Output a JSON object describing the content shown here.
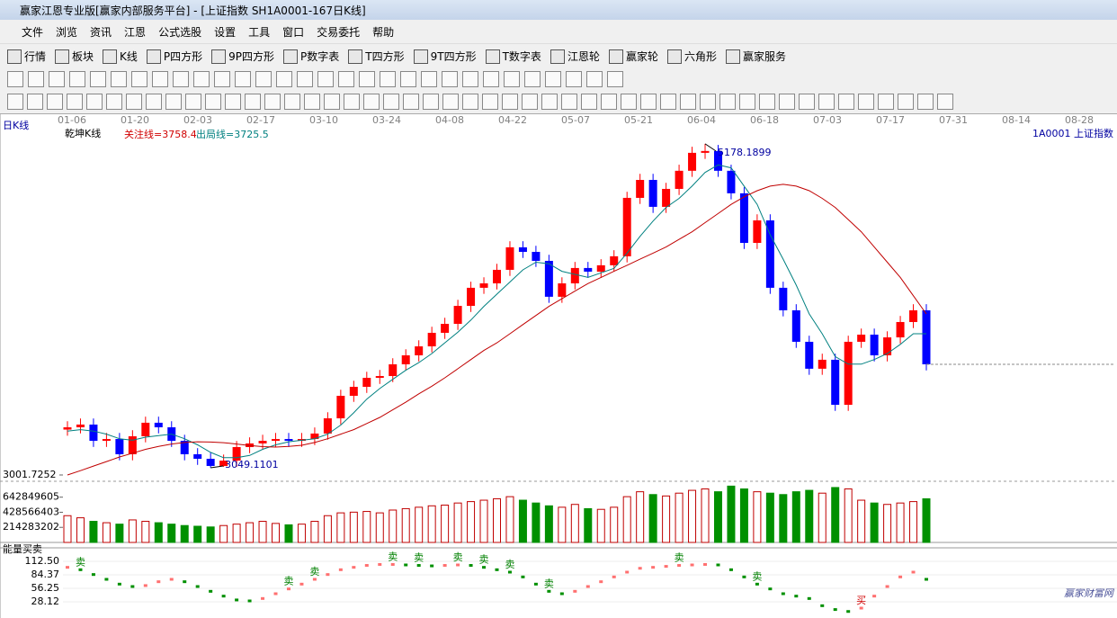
{
  "window": {
    "title": "赢家江恩专业版[赢家内部服务平台] - [上证指数  SH1A0001-167日K线]"
  },
  "menu": [
    "文件",
    "浏览",
    "资讯",
    "江恩",
    "公式选股",
    "设置",
    "工具",
    "窗口",
    "交易委托",
    "帮助"
  ],
  "toolbar": [
    "行情",
    "板块",
    "K线",
    "P四方形",
    "9P四方形",
    "P数字表",
    "T四方形",
    "9T四方形",
    "T数字表",
    "江恩轮",
    "赢家轮",
    "六角形",
    "赢家服务"
  ],
  "chart_data": {
    "type": "candlestick",
    "period_label": "日K线",
    "style_label": "乾坤K线",
    "focus_line": "关注线=3758.4",
    "exit_line": "出局线=3725.5",
    "symbol_label": "1A0001  上证指数",
    "date_labels": [
      "01-06",
      "01-20",
      "02-03",
      "02-17",
      "03-10",
      "03-24",
      "04-08",
      "04-22",
      "05-07",
      "05-21",
      "06-04",
      "06-18",
      "07-03",
      "07-17",
      "07-31",
      "08-14",
      "08-28"
    ],
    "open": [
      3300,
      3315,
      3333,
      3226,
      3238,
      3138,
      3256,
      3345,
      3315,
      3226,
      3138,
      3108,
      3061,
      3096,
      3185,
      3209,
      3226,
      3238,
      3226,
      3238,
      3274,
      3374,
      3522,
      3581,
      3640,
      3652,
      3729,
      3788,
      3847,
      3936,
      3995,
      4113,
      4232,
      4261,
      4350,
      4498,
      4468,
      4409,
      4173,
      4261,
      4362,
      4338,
      4380,
      4439,
      4823,
      4941,
      4764,
      4882,
      5001,
      5119,
      5131,
      5001,
      4853,
      4527,
      4675,
      4232,
      4084,
      3877,
      3700,
      3759,
      3463,
      3877,
      3924,
      3788,
      3906,
      4007,
      4084
    ],
    "high": [
      3355,
      3373,
      3373,
      3278,
      3278,
      3296,
      3385,
      3385,
      3355,
      3266,
      3178,
      3148,
      3136,
      3225,
      3249,
      3266,
      3278,
      3278,
      3278,
      3314,
      3414,
      3562,
      3621,
      3680,
      3692,
      3769,
      3828,
      3887,
      3976,
      4035,
      4153,
      4272,
      4301,
      4390,
      4538,
      4538,
      4508,
      4449,
      4301,
      4402,
      4402,
      4420,
      4479,
      4863,
      4981,
      4981,
      4922,
      5041,
      5159,
      5178.1899,
      5171,
      5041,
      4893,
      4715,
      4715,
      4272,
      4124,
      3917,
      3799,
      3799,
      3917,
      3964,
      3964,
      3946,
      4047,
      4124,
      4124
    ],
    "low": [
      3260,
      3275,
      3186,
      3186,
      3098,
      3098,
      3216,
      3275,
      3186,
      3098,
      3068,
      3049.1101,
      3055,
      3056,
      3145,
      3169,
      3186,
      3186,
      3186,
      3198,
      3234,
      3334,
      3482,
      3541,
      3600,
      3612,
      3689,
      3748,
      3807,
      3896,
      3955,
      4073,
      4192,
      4221,
      4310,
      4428,
      4369,
      4133,
      4133,
      4221,
      4298,
      4298,
      4340,
      4399,
      4783,
      4724,
      4724,
      4842,
      4961,
      5079,
      4961,
      4813,
      4487,
      4487,
      4192,
      4044,
      3837,
      3660,
      3660,
      3423,
      3423,
      3837,
      3748,
      3748,
      3866,
      3967,
      3689
    ],
    "close": [
      3315,
      3333,
      3226,
      3238,
      3138,
      3256,
      3345,
      3315,
      3226,
      3138,
      3108,
      3061,
      3096,
      3185,
      3209,
      3226,
      3238,
      3226,
      3238,
      3274,
      3374,
      3522,
      3581,
      3640,
      3652,
      3729,
      3788,
      3847,
      3936,
      3995,
      4113,
      4232,
      4261,
      4350,
      4498,
      4468,
      4409,
      4173,
      4261,
      4362,
      4338,
      4380,
      4439,
      4823,
      4941,
      4764,
      4882,
      5001,
      5119,
      5131,
      5001,
      4853,
      4527,
      4675,
      4232,
      4084,
      3877,
      3700,
      3759,
      3463,
      3877,
      3924,
      3788,
      3906,
      4007,
      4084,
      3729
    ],
    "up_color": "#ff0000",
    "down_color": "#0000ff",
    "ylim": [
      3001.7252,
      5278
    ],
    "yticks": [
      3001.7252
    ],
    "max_label": 5178.1899,
    "min_label": 3049.1101,
    "ma": [
      {
        "color": "#008080",
        "values": [
          3290,
          3300,
          3290,
          3270,
          3240,
          3230,
          3250,
          3260,
          3270,
          3240,
          3200,
          3150,
          3115,
          3115,
          3130,
          3170,
          3200,
          3220,
          3230,
          3240,
          3270,
          3330,
          3410,
          3500,
          3570,
          3630,
          3690,
          3740,
          3800,
          3870,
          3940,
          4020,
          4110,
          4190,
          4270,
          4350,
          4400,
          4390,
          4340,
          4320,
          4300,
          4330,
          4360,
          4460,
          4570,
          4670,
          4760,
          4820,
          4900,
          4990,
          5040,
          5020,
          4900,
          4780,
          4580,
          4420,
          4250,
          4060,
          3930,
          3780,
          3730,
          3730,
          3760,
          3800,
          3860,
          3930,
          3930
        ]
      },
      {
        "color": "#c00000",
        "values": [
          3002,
          3030,
          3060,
          3090,
          3120,
          3145,
          3170,
          3190,
          3205,
          3215,
          3220,
          3218,
          3214,
          3205,
          3195,
          3188,
          3185,
          3190,
          3197,
          3215,
          3240,
          3270,
          3300,
          3340,
          3380,
          3430,
          3480,
          3535,
          3585,
          3640,
          3700,
          3760,
          3820,
          3870,
          3930,
          3990,
          4050,
          4110,
          4160,
          4210,
          4260,
          4300,
          4340,
          4380,
          4420,
          4460,
          4500,
          4550,
          4600,
          4660,
          4720,
          4780,
          4830,
          4870,
          4900,
          4912,
          4900,
          4870,
          4820,
          4760,
          4680,
          4600,
          4500,
          4400,
          4300,
          4180,
          4060
        ]
      }
    ],
    "volume": {
      "values": [
        380000000,
        350000000,
        300000000,
        280000000,
        260000000,
        320000000,
        300000000,
        280000000,
        260000000,
        240000000,
        230000000,
        220000000,
        240000000,
        260000000,
        280000000,
        300000000,
        270000000,
        250000000,
        260000000,
        300000000,
        380000000,
        420000000,
        430000000,
        440000000,
        420000000,
        460000000,
        480000000,
        500000000,
        520000000,
        530000000,
        560000000,
        580000000,
        600000000,
        620000000,
        650000000,
        600000000,
        560000000,
        520000000,
        500000000,
        540000000,
        480000000,
        470000000,
        500000000,
        650000000,
        720000000,
        680000000,
        660000000,
        700000000,
        740000000,
        760000000,
        720000000,
        800000000,
        760000000,
        720000000,
        700000000,
        680000000,
        720000000,
        740000000,
        700000000,
        780000000,
        760000000,
        600000000,
        560000000,
        540000000,
        560000000,
        580000000,
        620000000
      ],
      "ylim": [
        0,
        856000000
      ],
      "yticks": [
        214283202,
        428566403,
        642849605
      ],
      "up_color": "#c00000",
      "down_color": "#009000"
    },
    "indicator": {
      "name": "能量买卖",
      "values": [
        100,
        95,
        85,
        75,
        65,
        60,
        62,
        70,
        75,
        70,
        60,
        50,
        40,
        32,
        30,
        35,
        45,
        55,
        65,
        75,
        85,
        95,
        100,
        104,
        106,
        106,
        105,
        104,
        103,
        104,
        105,
        104,
        100,
        95,
        90,
        80,
        65,
        50,
        45,
        50,
        60,
        70,
        80,
        90,
        98,
        100,
        102,
        104,
        105,
        106,
        105,
        95,
        80,
        65,
        55,
        45,
        40,
        35,
        20,
        12,
        8,
        15,
        40,
        60,
        80,
        90,
        75
      ],
      "ylim": [
        -1.88,
        131.25
      ],
      "yticks": [
        {
          "value": 112.5,
          "label": "112.50"
        },
        84.37,
        56.25,
        28.12
      ],
      "signals": [
        null,
        "卖",
        null,
        null,
        null,
        null,
        null,
        null,
        null,
        null,
        null,
        null,
        null,
        null,
        null,
        null,
        null,
        "卖",
        null,
        "卖",
        null,
        null,
        null,
        null,
        null,
        "卖",
        null,
        "卖",
        null,
        null,
        "卖",
        null,
        "卖",
        null,
        "卖",
        null,
        null,
        "卖",
        null,
        null,
        null,
        null,
        null,
        null,
        null,
        null,
        null,
        "卖",
        null,
        null,
        null,
        null,
        null,
        "卖",
        null,
        null,
        null,
        null,
        null,
        null,
        null,
        "买",
        null,
        null,
        null,
        null,
        null
      ],
      "up_color": "#ff7070",
      "down_color": "#009000"
    }
  },
  "watermark": "赢家财富网"
}
